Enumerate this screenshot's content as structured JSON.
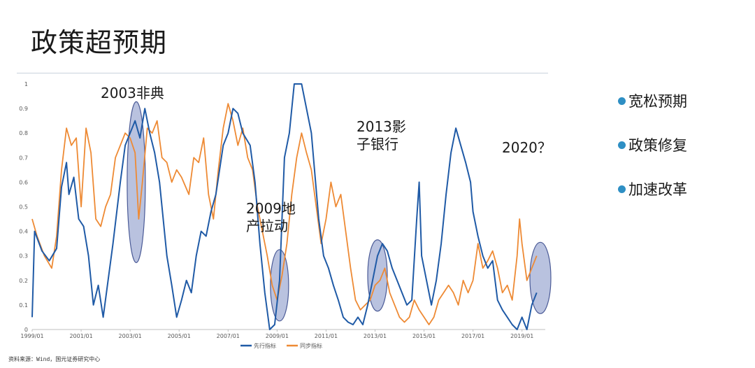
{
  "page": {
    "title": "政策超预期",
    "source_note": "资料来源：Wind，国元证券研究中心"
  },
  "side_list": [
    {
      "label": "宽松预期"
    },
    {
      "label": "政策修复"
    },
    {
      "label": "加速改革"
    }
  ],
  "colors": {
    "lead": "#1f5aa6",
    "sync": "#ee8a34",
    "ellipse_fill": "#7f8fc4",
    "ellipse_stroke": "#4a5a96",
    "bullet": "#2e8fc4"
  },
  "chart_data": {
    "type": "line",
    "ylim": [
      0,
      1
    ],
    "y_ticks": [
      "0",
      "0.1",
      "0.2",
      "0.3",
      "0.4",
      "0.5",
      "0.6",
      "0.7",
      "0.8",
      "0.9",
      "1"
    ],
    "x_ticks": [
      "1999/01",
      "2001/01",
      "2003/01",
      "2005/01",
      "2007/01",
      "2009/01",
      "2011/01",
      "2013/01",
      "2015/01",
      "2017/01",
      "2019/01"
    ],
    "grid": false,
    "legend_position": "bottom",
    "series": [
      {
        "name": "先行指标",
        "points": [
          [
            1999.0,
            0.05
          ],
          [
            1999.1,
            0.4
          ],
          [
            1999.4,
            0.32
          ],
          [
            1999.7,
            0.28
          ],
          [
            2000.0,
            0.33
          ],
          [
            2000.2,
            0.58
          ],
          [
            2000.4,
            0.68
          ],
          [
            2000.5,
            0.55
          ],
          [
            2000.7,
            0.62
          ],
          [
            2000.9,
            0.45
          ],
          [
            2001.1,
            0.42
          ],
          [
            2001.3,
            0.3
          ],
          [
            2001.5,
            0.1
          ],
          [
            2001.7,
            0.18
          ],
          [
            2001.9,
            0.05
          ],
          [
            2002.1,
            0.2
          ],
          [
            2002.3,
            0.35
          ],
          [
            2002.6,
            0.6
          ],
          [
            2002.8,
            0.75
          ],
          [
            2003.0,
            0.8
          ],
          [
            2003.2,
            0.85
          ],
          [
            2003.4,
            0.78
          ],
          [
            2003.6,
            0.9
          ],
          [
            2003.8,
            0.8
          ],
          [
            2004.0,
            0.72
          ],
          [
            2004.2,
            0.6
          ],
          [
            2004.5,
            0.3
          ],
          [
            2004.7,
            0.18
          ],
          [
            2004.9,
            0.05
          ],
          [
            2005.1,
            0.12
          ],
          [
            2005.3,
            0.2
          ],
          [
            2005.5,
            0.15
          ],
          [
            2005.7,
            0.3
          ],
          [
            2005.9,
            0.4
          ],
          [
            2006.1,
            0.38
          ],
          [
            2006.3,
            0.48
          ],
          [
            2006.5,
            0.55
          ],
          [
            2006.8,
            0.75
          ],
          [
            2007.0,
            0.8
          ],
          [
            2007.2,
            0.9
          ],
          [
            2007.4,
            0.88
          ],
          [
            2007.6,
            0.8
          ],
          [
            2007.9,
            0.75
          ],
          [
            2008.1,
            0.6
          ],
          [
            2008.3,
            0.35
          ],
          [
            2008.5,
            0.15
          ],
          [
            2008.7,
            0.0
          ],
          [
            2008.9,
            0.02
          ],
          [
            2009.1,
            0.2
          ],
          [
            2009.3,
            0.7
          ],
          [
            2009.5,
            0.8
          ],
          [
            2009.7,
            1.0
          ],
          [
            2010.0,
            1.0
          ],
          [
            2010.2,
            0.9
          ],
          [
            2010.4,
            0.8
          ],
          [
            2010.7,
            0.45
          ],
          [
            2010.9,
            0.3
          ],
          [
            2011.1,
            0.25
          ],
          [
            2011.3,
            0.18
          ],
          [
            2011.5,
            0.12
          ],
          [
            2011.7,
            0.05
          ],
          [
            2011.9,
            0.03
          ],
          [
            2012.1,
            0.02
          ],
          [
            2012.3,
            0.05
          ],
          [
            2012.5,
            0.02
          ],
          [
            2012.7,
            0.1
          ],
          [
            2012.9,
            0.2
          ],
          [
            2013.1,
            0.3
          ],
          [
            2013.3,
            0.35
          ],
          [
            2013.5,
            0.32
          ],
          [
            2013.7,
            0.25
          ],
          [
            2013.9,
            0.2
          ],
          [
            2014.1,
            0.15
          ],
          [
            2014.3,
            0.1
          ],
          [
            2014.5,
            0.12
          ],
          [
            2014.7,
            0.45
          ],
          [
            2014.8,
            0.6
          ],
          [
            2014.9,
            0.3
          ],
          [
            2015.1,
            0.2
          ],
          [
            2015.3,
            0.1
          ],
          [
            2015.5,
            0.2
          ],
          [
            2015.7,
            0.35
          ],
          [
            2015.9,
            0.55
          ],
          [
            2016.1,
            0.72
          ],
          [
            2016.3,
            0.82
          ],
          [
            2016.5,
            0.75
          ],
          [
            2016.7,
            0.68
          ],
          [
            2016.9,
            0.6
          ],
          [
            2017.0,
            0.48
          ],
          [
            2017.2,
            0.38
          ],
          [
            2017.4,
            0.3
          ],
          [
            2017.6,
            0.25
          ],
          [
            2017.8,
            0.28
          ],
          [
            2018.0,
            0.12
          ],
          [
            2018.2,
            0.08
          ],
          [
            2018.4,
            0.05
          ],
          [
            2018.6,
            0.02
          ],
          [
            2018.8,
            0.0
          ],
          [
            2019.0,
            0.05
          ],
          [
            2019.2,
            0.0
          ],
          [
            2019.4,
            0.1
          ],
          [
            2019.6,
            0.15
          ]
        ]
      },
      {
        "name": "同步指标",
        "points": [
          [
            1999.0,
            0.45
          ],
          [
            1999.2,
            0.38
          ],
          [
            1999.5,
            0.3
          ],
          [
            1999.8,
            0.25
          ],
          [
            2000.0,
            0.38
          ],
          [
            2000.2,
            0.65
          ],
          [
            2000.4,
            0.82
          ],
          [
            2000.6,
            0.75
          ],
          [
            2000.8,
            0.78
          ],
          [
            2001.0,
            0.5
          ],
          [
            2001.2,
            0.82
          ],
          [
            2001.4,
            0.72
          ],
          [
            2001.6,
            0.45
          ],
          [
            2001.8,
            0.42
          ],
          [
            2002.0,
            0.5
          ],
          [
            2002.2,
            0.55
          ],
          [
            2002.4,
            0.7
          ],
          [
            2002.6,
            0.75
          ],
          [
            2002.8,
            0.8
          ],
          [
            2003.0,
            0.78
          ],
          [
            2003.2,
            0.72
          ],
          [
            2003.35,
            0.45
          ],
          [
            2003.5,
            0.6
          ],
          [
            2003.7,
            0.82
          ],
          [
            2003.9,
            0.8
          ],
          [
            2004.1,
            0.85
          ],
          [
            2004.3,
            0.7
          ],
          [
            2004.5,
            0.68
          ],
          [
            2004.7,
            0.6
          ],
          [
            2004.9,
            0.65
          ],
          [
            2005.1,
            0.62
          ],
          [
            2005.4,
            0.55
          ],
          [
            2005.6,
            0.7
          ],
          [
            2005.8,
            0.68
          ],
          [
            2006.0,
            0.78
          ],
          [
            2006.2,
            0.55
          ],
          [
            2006.4,
            0.45
          ],
          [
            2006.6,
            0.65
          ],
          [
            2006.8,
            0.82
          ],
          [
            2007.0,
            0.92
          ],
          [
            2007.2,
            0.85
          ],
          [
            2007.4,
            0.75
          ],
          [
            2007.6,
            0.82
          ],
          [
            2007.8,
            0.7
          ],
          [
            2008.0,
            0.65
          ],
          [
            2008.2,
            0.5
          ],
          [
            2008.4,
            0.4
          ],
          [
            2008.6,
            0.3
          ],
          [
            2008.8,
            0.18
          ],
          [
            2009.0,
            0.12
          ],
          [
            2009.2,
            0.22
          ],
          [
            2009.4,
            0.35
          ],
          [
            2009.6,
            0.55
          ],
          [
            2009.8,
            0.7
          ],
          [
            2010.0,
            0.8
          ],
          [
            2010.2,
            0.72
          ],
          [
            2010.4,
            0.65
          ],
          [
            2010.6,
            0.5
          ],
          [
            2010.8,
            0.35
          ],
          [
            2011.0,
            0.45
          ],
          [
            2011.2,
            0.6
          ],
          [
            2011.4,
            0.5
          ],
          [
            2011.6,
            0.55
          ],
          [
            2011.8,
            0.4
          ],
          [
            2012.0,
            0.25
          ],
          [
            2012.2,
            0.12
          ],
          [
            2012.4,
            0.08
          ],
          [
            2012.6,
            0.1
          ],
          [
            2012.8,
            0.12
          ],
          [
            2013.0,
            0.18
          ],
          [
            2013.2,
            0.2
          ],
          [
            2013.4,
            0.25
          ],
          [
            2013.6,
            0.15
          ],
          [
            2013.8,
            0.1
          ],
          [
            2014.0,
            0.05
          ],
          [
            2014.2,
            0.03
          ],
          [
            2014.4,
            0.05
          ],
          [
            2014.6,
            0.12
          ],
          [
            2014.8,
            0.08
          ],
          [
            2015.0,
            0.05
          ],
          [
            2015.2,
            0.02
          ],
          [
            2015.4,
            0.05
          ],
          [
            2015.6,
            0.12
          ],
          [
            2015.8,
            0.15
          ],
          [
            2016.0,
            0.18
          ],
          [
            2016.2,
            0.15
          ],
          [
            2016.4,
            0.1
          ],
          [
            2016.6,
            0.2
          ],
          [
            2016.8,
            0.15
          ],
          [
            2017.0,
            0.2
          ],
          [
            2017.2,
            0.35
          ],
          [
            2017.4,
            0.25
          ],
          [
            2017.6,
            0.28
          ],
          [
            2017.8,
            0.32
          ],
          [
            2018.0,
            0.25
          ],
          [
            2018.2,
            0.15
          ],
          [
            2018.4,
            0.18
          ],
          [
            2018.6,
            0.12
          ],
          [
            2018.8,
            0.3
          ],
          [
            2018.9,
            0.45
          ],
          [
            2019.0,
            0.35
          ],
          [
            2019.2,
            0.2
          ],
          [
            2019.4,
            0.25
          ],
          [
            2019.6,
            0.3
          ]
        ]
      }
    ],
    "annotations": [
      {
        "text": "2003非典",
        "lines": [
          "2003非典"
        ]
      },
      {
        "text": "2009地产拉动",
        "lines": [
          "2009地",
          "产拉动"
        ]
      },
      {
        "text": "2013影子银行",
        "lines": [
          "2013影",
          "子银行"
        ]
      },
      {
        "text": "2020？",
        "lines": [
          "2020？"
        ]
      }
    ],
    "highlights": [
      {
        "label": "2003非典",
        "x_center": 2003.25,
        "y_center": 0.6
      },
      {
        "label": "2009地产拉动",
        "x_center": 2009.1,
        "y_center": 0.18
      },
      {
        "label": "2013影子银行",
        "x_center": 2013.1,
        "y_center": 0.22
      },
      {
        "label": "2020？",
        "x_center": 2019.75,
        "y_center": 0.21
      }
    ]
  }
}
